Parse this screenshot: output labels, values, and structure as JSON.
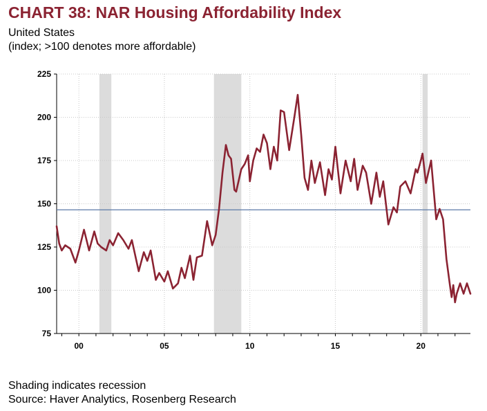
{
  "header": {
    "title": "CHART 38: NAR Housing Affordability Index",
    "subtitle_1": "United States",
    "subtitle_2": "(index; >100 denotes more affordable)"
  },
  "footer": {
    "note": "Shading indicates recession",
    "source": "Source: Haver Analytics, Rosenberg Research"
  },
  "chart_data": {
    "type": "line",
    "title": "CHART 38: NAR Housing Affordability Index",
    "xlabel": "",
    "ylabel": "",
    "ylim": [
      75,
      225
    ],
    "xlim": [
      1998.7,
      2022.9
    ],
    "yticks": [
      225,
      200,
      175,
      150,
      125,
      100,
      75
    ],
    "xticks": [
      {
        "value": 2000,
        "label": "00"
      },
      {
        "value": 2005,
        "label": "05"
      },
      {
        "value": 2010,
        "label": "10"
      },
      {
        "value": 2015,
        "label": "15"
      },
      {
        "value": 2020,
        "label": "20"
      }
    ],
    "grid": true,
    "legend": "none",
    "line_color": "#8b2332",
    "reference_line": {
      "value": 146.5,
      "color": "#5b7aa8"
    },
    "recessions": [
      [
        2001.2,
        2001.9
      ],
      [
        2007.9,
        2009.5
      ],
      [
        2020.1,
        2020.4
      ]
    ],
    "series": [
      {
        "x": [
          1998.7,
          1998.85,
          1999.0,
          1999.2,
          1999.5,
          1999.8,
          2000.0,
          2000.3,
          2000.6,
          2000.9,
          2001.1,
          2001.3,
          2001.6,
          2001.8,
          2002.0,
          2002.3,
          2002.6,
          2002.9,
          2003.1,
          2003.5,
          2003.8,
          2004.0,
          2004.2,
          2004.5,
          2004.7,
          2005.0,
          2005.2,
          2005.5,
          2005.8,
          2006.0,
          2006.2,
          2006.5,
          2006.7,
          2006.9,
          2007.2,
          2007.5,
          2007.8,
          2008.0,
          2008.2,
          2008.4,
          2008.6,
          2008.75,
          2008.9,
          2009.1,
          2009.2,
          2009.5,
          2009.7,
          2009.9,
          2010.0,
          2010.2,
          2010.4,
          2010.6,
          2010.8,
          2011.0,
          2011.2,
          2011.4,
          2011.6,
          2011.8,
          2012.0,
          2012.3,
          2012.6,
          2012.8,
          2013.0,
          2013.2,
          2013.4,
          2013.6,
          2013.8,
          2014.1,
          2014.4,
          2014.6,
          2014.8,
          2015.0,
          2015.3,
          2015.6,
          2015.9,
          2016.1,
          2016.3,
          2016.6,
          2016.8,
          2017.1,
          2017.4,
          2017.6,
          2017.8,
          2018.1,
          2018.4,
          2018.6,
          2018.8,
          2019.1,
          2019.4,
          2019.7,
          2019.8,
          2020.0,
          2020.1,
          2020.3,
          2020.6,
          2020.9,
          2021.1,
          2021.3,
          2021.5,
          2021.7,
          2021.8,
          2021.9,
          2022.0,
          2022.1,
          2022.3,
          2022.5,
          2022.7,
          2022.9
        ],
        "values": [
          137,
          127,
          123,
          126,
          124,
          116,
          123,
          135,
          123,
          134,
          127,
          125,
          123,
          129,
          126,
          133,
          129,
          124,
          129,
          111,
          122,
          117,
          123,
          106,
          110,
          105,
          111,
          101,
          104,
          113,
          107,
          120,
          106,
          119,
          120,
          140,
          126,
          132,
          147,
          168,
          184,
          178,
          176,
          158,
          157,
          170,
          173,
          178,
          163,
          175,
          182,
          180,
          190,
          185,
          170,
          183,
          175,
          204,
          203,
          181,
          200,
          213,
          190,
          165,
          158,
          175,
          162,
          174,
          155,
          170,
          164,
          183,
          156,
          175,
          163,
          176,
          158,
          172,
          168,
          150,
          168,
          154,
          163,
          138,
          148,
          145,
          160,
          163,
          156,
          170,
          168,
          175,
          179,
          162,
          175,
          141,
          147,
          141,
          118,
          103,
          96,
          103,
          93,
          98,
          104,
          98,
          104,
          98
        ]
      }
    ]
  }
}
